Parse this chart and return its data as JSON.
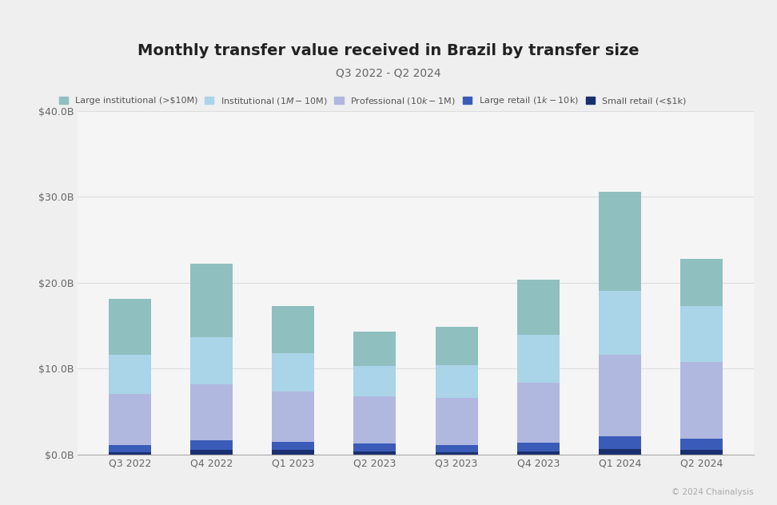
{
  "title": "Monthly transfer value received in Brazil by transfer size",
  "subtitle": "Q3 2022 - Q2 2024",
  "categories": [
    "Q3 2022",
    "Q4 2022",
    "Q1 2023",
    "Q2 2023",
    "Q3 2023",
    "Q4 2023",
    "Q1 2024",
    "Q2 2024"
  ],
  "series_order": [
    "Small retail (<$1k)",
    "Large retail ($1k-$10k)",
    "Professional ($10k-$1M)",
    "Institutional ($1M-$10M)",
    "Large institutional (>$10M)"
  ],
  "series": {
    "Small retail (<$1k)": [
      0.3,
      0.5,
      0.5,
      0.4,
      0.3,
      0.4,
      0.6,
      0.5
    ],
    "Large retail ($1k-$10k)": [
      0.8,
      1.2,
      1.0,
      0.9,
      0.8,
      1.0,
      1.5,
      1.3
    ],
    "Professional ($10k-$1M)": [
      6.0,
      6.5,
      5.8,
      5.5,
      5.5,
      7.0,
      9.5,
      9.0
    ],
    "Institutional ($1M-$10M)": [
      4.5,
      5.5,
      4.5,
      3.5,
      3.8,
      5.5,
      7.5,
      6.5
    ],
    "Large institutional (>$10M)": [
      6.5,
      8.5,
      5.5,
      4.0,
      4.5,
      6.5,
      11.5,
      5.5
    ]
  },
  "colors": {
    "Small retail (<$1k)": "#1a2f6e",
    "Large retail ($1k-$10k)": "#3a5cb8",
    "Professional ($10k-$1M)": "#b0b8e0",
    "Institutional ($1M-$10M)": "#aad4e8",
    "Large institutional (>$10M)": "#8fbfbf"
  },
  "legend_order": [
    "Large institutional (>$10M)",
    "Institutional ($1M-$10M)",
    "Professional ($10k-$1M)",
    "Large retail ($1k-$10k)",
    "Small retail (<$1k)"
  ],
  "ylim": [
    0,
    40
  ],
  "yticks": [
    0,
    10,
    20,
    30,
    40
  ],
  "ytick_labels": [
    "$0.0B",
    "$10.0B",
    "$20.0B",
    "$30.0B",
    "$40.0B"
  ],
  "background_color": "#efefef",
  "plot_bg_color": "#f5f5f5",
  "title_fontsize": 14,
  "subtitle_fontsize": 10,
  "legend_fontsize": 8,
  "tick_fontsize": 9,
  "footer_text": "© 2024 Chainalysis",
  "footer_fontsize": 7.5
}
